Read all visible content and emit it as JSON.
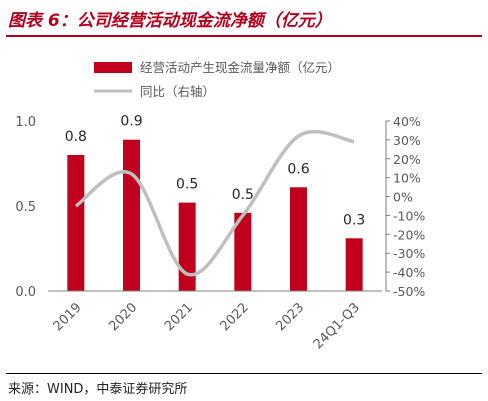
{
  "header": {
    "title": "图表 6：公司经营活动现金流净额（亿元）"
  },
  "footer": {
    "source": "来源：WIND，中泰证券研究所"
  },
  "colors": {
    "bar": "#c0001c",
    "line": "#bfbfbf",
    "title": "#b5001d",
    "text": "#595959"
  },
  "chart_data": {
    "type": "bar",
    "title": "",
    "categories": [
      "2019",
      "2020",
      "2021",
      "2022",
      "2023",
      "24Q1-Q3"
    ],
    "series": [
      {
        "name": "经营活动产生现金流量净额（亿元）",
        "type": "bar",
        "axis": "left",
        "values": [
          0.8,
          0.9,
          0.5,
          0.5,
          0.6,
          0.3
        ],
        "bar_heights": [
          0.8,
          0.89,
          0.52,
          0.46,
          0.61,
          0.31
        ]
      },
      {
        "name": "同比（右轴）",
        "type": "line",
        "axis": "right",
        "values": [
          -5,
          12,
          -41,
          -10,
          32,
          29
        ]
      }
    ],
    "left_axis": {
      "ylim": [
        0,
        1.0
      ],
      "ticks": [
        "0.0",
        "0.5",
        "1.0"
      ]
    },
    "right_axis": {
      "ylim": [
        -50,
        40
      ],
      "ticks": [
        "40%",
        "30%",
        "20%",
        "10%",
        "0%",
        "-10%",
        "-20%",
        "-30%",
        "-40%",
        "-50%"
      ]
    },
    "legend": {
      "position": "top-left"
    },
    "grid": false
  }
}
